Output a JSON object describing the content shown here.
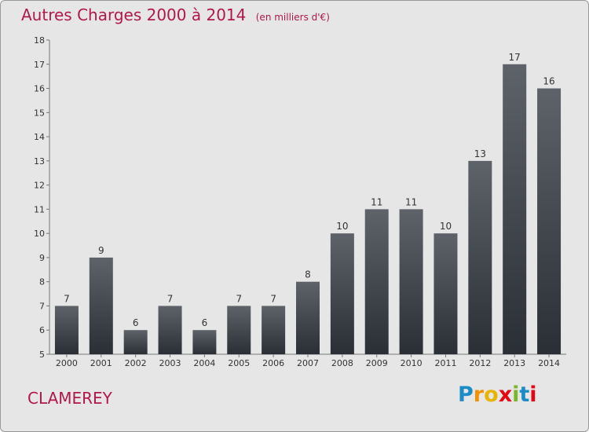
{
  "header": {
    "title": "Autres Charges 2000 à 2014",
    "subtitle": "(en milliers d'€)"
  },
  "footer": {
    "town": "CLAMEREY",
    "logo": "Proxiti"
  },
  "colors": {
    "title": "#b0174d",
    "bar_top": "#5e6369",
    "bar_bottom": "#2a2f35",
    "background": "#e6e6e6"
  },
  "chart_data": {
    "type": "bar",
    "title": "Autres Charges 2000 à 2014",
    "subtitle": "(en milliers d'€)",
    "xlabel": "",
    "ylabel": "",
    "categories": [
      "2000",
      "2001",
      "2002",
      "2003",
      "2004",
      "2005",
      "2006",
      "2007",
      "2008",
      "2009",
      "2010",
      "2011",
      "2012",
      "2013",
      "2014"
    ],
    "values": [
      7,
      9,
      6,
      7,
      6,
      7,
      7,
      8,
      10,
      11,
      11,
      10,
      13,
      17,
      16
    ],
    "ylim": [
      5,
      18
    ],
    "yticks": [
      5,
      6,
      7,
      8,
      9,
      10,
      11,
      12,
      13,
      14,
      15,
      16,
      17,
      18
    ],
    "grid": false,
    "legend": "none"
  }
}
